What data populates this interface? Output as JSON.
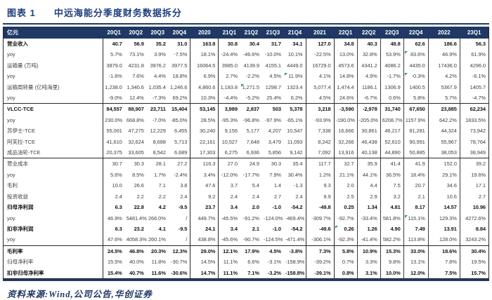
{
  "figure": {
    "label": "图表 1",
    "title": "中远海能分季度财务数据拆分",
    "source": "资料来源:Wind,公司公告,华创证券"
  },
  "colors": {
    "header_navy": "#1f3864",
    "title_navy": "#1e3e7d",
    "marker_green": "#2e9e4c"
  },
  "chart_data": {
    "type": "table",
    "unit_header": "亿元",
    "columns": [
      "20Q1",
      "20Q2",
      "20Q3",
      "20Q4",
      "2020",
      "21Q1",
      "21Q2",
      "21Q3",
      "21Q4",
      "2021",
      "22Q1",
      "22Q2",
      "22Q3",
      "22Q4",
      "2022",
      "23Q1"
    ],
    "rows": [
      {
        "label": "营业收入",
        "bold": true,
        "section": false,
        "markers": [],
        "values": [
          "40.7",
          "56.9",
          "35.2",
          "31.0",
          "163.8",
          "30.8",
          "30.4",
          "31.7",
          "34.1",
          "127.0",
          "34.8",
          "40.3",
          "48.8",
          "62.6",
          "186.6",
          "56.3"
        ]
      },
      {
        "label": "yoy",
        "bold": false,
        "section": false,
        "markers": [
          13
        ],
        "values": [
          "5.7%",
          "73.1%",
          "3.9%",
          "-7.5%",
          "18.1%",
          "-24.4%",
          "-46.6%",
          "-10.0%",
          "10.1%",
          "-22.5%",
          "13.0%",
          "32.8%",
          "53.9%",
          "83.6%",
          "46.9%",
          "61.9%"
        ]
      },
      {
        "label": "运输量 (万吨)",
        "bold": false,
        "section": false,
        "markers": [],
        "values": [
          "3879.0",
          "4231.8",
          "3976.2",
          "3977.5",
          "16064.5",
          "3985.0",
          "4139.9",
          "4155.1",
          "4449.0",
          "16729.0",
          "4573.6",
          "4341.2",
          "4086.2",
          "4435.0",
          "17436.0",
          "4296.0"
        ]
      },
      {
        "label": "yoy",
        "bold": false,
        "section": false,
        "markers": [
          8,
          13
        ],
        "values": [
          "-1.6%",
          "7.6%",
          "4.4%",
          "18.8%",
          "6.9%",
          "2.7%",
          "-2.2%",
          "4.5%",
          "11.9%",
          "4.1%",
          "14.8%",
          "4.9%",
          "-1.7%",
          "-0.3%",
          "4.2%",
          "-6.1%"
        ]
      },
      {
        "label": "运输周转量 (亿吨海里)",
        "bold": false,
        "section": false,
        "markers": [
          6
        ],
        "values": [
          "1,238.0",
          "1,340.6",
          "1,035.4",
          "1,246.6",
          "4,860.6",
          "1,183.8",
          "1,271.5",
          "1298.7",
          "1323.4",
          "5,077.4",
          "1,474.4",
          "1186.1",
          "1306.9",
          "1400.5",
          "5367.9",
          "1405.7"
        ]
      },
      {
        "label": "yoy",
        "bold": false,
        "section": false,
        "markers": [],
        "values": [
          "-9.0%",
          "12.4%",
          "-7.3%",
          "69.2%",
          "10.3%",
          "-4.4%",
          "-5.2%",
          "25.4%",
          "6.2%",
          "4.5%",
          "24.6%",
          "-6.7%",
          "0.6%",
          "5.8%",
          "5.7%",
          "-4.7%"
        ]
      },
      {
        "label": "VLCC-TCE",
        "bold": true,
        "section": true,
        "markers": [],
        "values": [
          "84,557",
          "88,907",
          "23,711",
          "15,404",
          "53,145",
          "3,989",
          "2,837",
          "503",
          "5,378",
          "3,218",
          "-3,590",
          "-2,978",
          "31,740",
          "67,650",
          "23,885",
          "62,234"
        ]
      },
      {
        "label": "yoy",
        "bold": false,
        "section": false,
        "markers": [],
        "values": [
          "230.0%",
          "668.8%",
          "-7.0%",
          "-85.0%",
          "28.5%",
          "-95.3%",
          "-96.8%",
          "-97.9%",
          "-65.1%",
          "-93.9%",
          "-190.0%",
          "-205.0%",
          "6208.7%",
          "1157.9%",
          "642.2%",
          "1833.5%"
        ]
      },
      {
        "label": "苏伊士-TCE",
        "bold": false,
        "section": false,
        "markers": [],
        "values": [
          "55,001",
          "47,275",
          "12,229",
          "6,455",
          "30,240",
          "9,156",
          "5,177",
          "4,207",
          "10,547",
          "7,338",
          "16,666",
          "30,861",
          "46,217",
          "81,281",
          "44,324",
          "73,942"
        ]
      },
      {
        "label": "阿芙拉-TCE",
        "bold": false,
        "section": false,
        "markers": [],
        "values": [
          "41,610",
          "32,624",
          "8,698",
          "5,713",
          "22,161",
          "10,527",
          "7,648",
          "3,479",
          "11,093",
          "8,242",
          "32,266",
          "46,438",
          "52,610",
          "90,991",
          "55,967",
          "78,764"
        ]
      },
      {
        "label": "成品油轮-TCE",
        "bold": false,
        "section": false,
        "markers": [],
        "values": [
          "20,375",
          "33,605",
          "8,542",
          "6,689",
          "17,303",
          "6,275",
          "6,936",
          "5,856",
          "9,142",
          "7,092",
          "13,916",
          "40,138",
          "44,890",
          "50,885",
          "38,053",
          "38,949"
        ]
      },
      {
        "label": "营业成本",
        "bold": false,
        "section": true,
        "markers": [],
        "values": [
          "30.7",
          "30.3",
          "28.1",
          "27.2",
          "116.3",
          "27.0",
          "24.9",
          "30.3",
          "35.4",
          "117.7",
          "32.7",
          "35.9",
          "41.4",
          "41.9",
          "152.0",
          "39.2"
        ]
      },
      {
        "label": "yoy",
        "bold": false,
        "section": false,
        "markers": [],
        "values": [
          "5.6%",
          "8.5%",
          "1.7%",
          "-2.4%",
          "3.4%",
          "-12.0%",
          "-17.7%",
          "7.9%",
          "30.4%",
          "1.2%",
          "21.1%",
          "44.1%",
          "36.5%",
          "18.4%",
          "29.1%",
          "19.6%"
        ]
      },
      {
        "label": "毛利",
        "bold": false,
        "section": false,
        "markers": [],
        "values": [
          "10.0",
          "26.6",
          "7.1",
          "3.8",
          "47.6",
          "3.7",
          "5.4",
          "1.4",
          "-1.3",
          "9.3",
          "2.0",
          "4.4",
          "7.5",
          "20.7",
          "34.6",
          "17.1"
        ]
      },
      {
        "label": "投资收益",
        "bold": false,
        "section": false,
        "markers": [],
        "values": [
          "2.4",
          "2.2",
          "2.2",
          "2.4",
          "9.2",
          "2.4",
          "2.4",
          "2.7",
          "2.4",
          "9.9",
          "2.5",
          "2.9",
          "3.2",
          "2.1",
          "10.6",
          "2.7"
        ]
      },
      {
        "label": "归母净利润",
        "bold": true,
        "section": false,
        "markers": [],
        "values": [
          "6.3",
          "22.8",
          "4.2",
          "-9.5",
          "23.7",
          "3.4",
          "2.0",
          "-1.0",
          "-54.2",
          "-49.8",
          "0.25",
          "1.34",
          "4.81",
          "8.17",
          "14.57",
          "10.96"
        ]
      },
      {
        "label": "yoy",
        "bold": false,
        "section": false,
        "markers": [
          13
        ],
        "values": [
          "46.9%",
          "5481.4%",
          "266.0%",
          "/",
          "449.7%",
          "-45.5%",
          "-91.2%",
          "-124.0%",
          "-469.4%",
          "-309.7%",
          "-92.7%",
          "-33.4%",
          "581.8%",
          "115.1%",
          "129.3%",
          "4272.6%"
        ]
      },
      {
        "label": "扣非净利润",
        "bold": true,
        "section": false,
        "markers": [
          10
        ],
        "values": [
          "6.3",
          "23.2",
          "4.1",
          "-9.5",
          "24.1",
          "3.4",
          "2.1",
          "-1.0",
          "-54.2",
          "-49.6",
          "0.26",
          "1.26",
          "4.90",
          "7.49",
          "13.91",
          "8.84"
        ]
      },
      {
        "label": "yoy",
        "bold": false,
        "section": false,
        "markers": [],
        "values": [
          "47.6%",
          "4058.3%",
          "260.1%",
          "/",
          "438.8%",
          "-45.6%",
          "-90.7%",
          "-124.5%",
          "-471.4%",
          "-306.1%",
          "-92.3%",
          "-41.4%",
          "582.2%",
          "113.8%",
          "128.0%",
          "3243.2%"
        ]
      },
      {
        "label": "毛利率",
        "bold": true,
        "section": true,
        "markers": [],
        "values": [
          "24.5%",
          "46.8%",
          "20.3%",
          "12.3%",
          "29.0%",
          "12.1%",
          "17.9%",
          "4.5%",
          "-3.8%",
          "7.3%",
          "5.8%",
          "10.9%",
          "15.3%",
          "33.0%",
          "18.6%",
          "30.4%"
        ]
      },
      {
        "label": "归母净利率",
        "bold": false,
        "section": false,
        "markers": [],
        "values": [
          "15.5%",
          "40.0%",
          "11.8%",
          "-30.7%",
          "14.5%",
          "11.1%",
          "6.6%",
          "-3.1%",
          "-158.9%",
          "-39.2%",
          "0.7%",
          "3.3%",
          "9.8%",
          "13.1%",
          "7.8%",
          "19.5%"
        ]
      },
      {
        "label": "扣非归母净利率",
        "bold": true,
        "section": false,
        "markers": [],
        "values": [
          "15.4%",
          "40.7%",
          "11.6%",
          "-30.6%",
          "14.7%",
          "11.1%",
          "7.1%",
          "-3.2%",
          "-158.8%",
          "-39.1%",
          "0.8%",
          "3.1%",
          "10.0%",
          "12.0%",
          "7.5%",
          "15.7%"
        ]
      }
    ]
  }
}
